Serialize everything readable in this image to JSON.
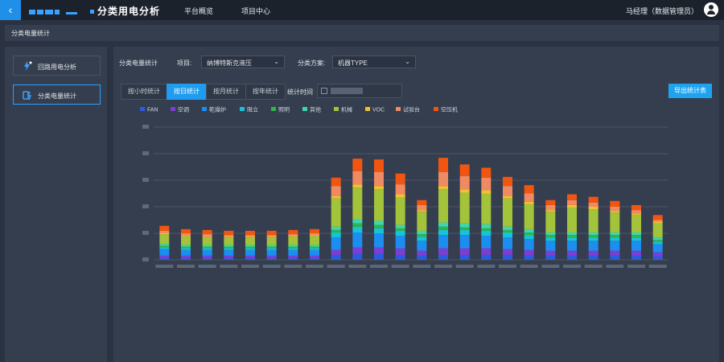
{
  "header": {
    "app_title": "分类用电分析",
    "nav": [
      "平台概览",
      "项目中心"
    ],
    "user": "马经理（数据管理员）"
  },
  "breadcrumb": "分类电量统计",
  "sidebar": {
    "items": [
      {
        "label": "回路用电分析",
        "active": false
      },
      {
        "label": "分类电量统计",
        "active": true
      }
    ]
  },
  "filters": {
    "section_label": "分类电量统计",
    "project_label": "项目:",
    "project_value": "纳博特斯克液压",
    "scheme_label": "分类方案:",
    "scheme_value": "机器TYPE",
    "time_label": "统计时间"
  },
  "tabs": [
    {
      "label": "按小时统计",
      "active": false
    },
    {
      "label": "按日统计",
      "active": true
    },
    {
      "label": "按月统计",
      "active": false
    },
    {
      "label": "按年统计",
      "active": false
    }
  ],
  "export_label": "导出统计表",
  "colors": {
    "accent": "#1f9cf0",
    "background": "#2b3342",
    "panel": "#353e4e"
  },
  "chart_data": {
    "type": "bar",
    "stacked": true,
    "series": [
      {
        "name": "FAN",
        "color": "#2a5ce0",
        "values": [
          2,
          2,
          2,
          2,
          2,
          2,
          2,
          2,
          6,
          7,
          7,
          6,
          5,
          6,
          6,
          6,
          6,
          5,
          5,
          5,
          5,
          5,
          5,
          4
        ]
      },
      {
        "name": "空调",
        "color": "#7b3fd4",
        "values": [
          3,
          3,
          3,
          3,
          3,
          3,
          3,
          3,
          6,
          8,
          8,
          8,
          6,
          8,
          8,
          8,
          7,
          7,
          6,
          6,
          6,
          6,
          6,
          5
        ]
      },
      {
        "name": "乾燥炉",
        "color": "#1b8ef0",
        "values": [
          8,
          7,
          7,
          7,
          7,
          7,
          7,
          7,
          15,
          18,
          17,
          15,
          12,
          16,
          16,
          15,
          14,
          13,
          12,
          12,
          12,
          12,
          12,
          10
        ]
      },
      {
        "name": "阻立",
        "color": "#17c3d6",
        "values": [
          2,
          2,
          2,
          2,
          2,
          2,
          2,
          2,
          6,
          7,
          6,
          6,
          5,
          6,
          6,
          6,
          6,
          5,
          4,
          4,
          4,
          4,
          4,
          3
        ]
      },
      {
        "name": "照明",
        "color": "#2fb54b",
        "values": [
          2,
          2,
          2,
          2,
          2,
          2,
          2,
          2,
          3,
          4,
          4,
          3,
          3,
          4,
          3,
          3,
          3,
          3,
          3,
          3,
          3,
          3,
          3,
          2
        ]
      },
      {
        "name": "其他",
        "color": "#3ed6b0",
        "values": [
          2,
          2,
          2,
          2,
          2,
          2,
          2,
          2,
          4,
          5,
          5,
          4,
          4,
          5,
          5,
          5,
          4,
          4,
          3,
          3,
          3,
          3,
          3,
          3
        ]
      },
      {
        "name": "机械",
        "color": "#a2c33a",
        "values": [
          12,
          10,
          9,
          9,
          9,
          9,
          10,
          11,
          34,
          38,
          38,
          33,
          23,
          40,
          37,
          37,
          34,
          30,
          25,
          30,
          28,
          24,
          21,
          17
        ]
      },
      {
        "name": "VOC",
        "color": "#f2c12e",
        "values": [
          1,
          1,
          1,
          1,
          1,
          1,
          1,
          1,
          3,
          4,
          4,
          4,
          2,
          4,
          4,
          4,
          3,
          3,
          2,
          3,
          3,
          2,
          2,
          2
        ]
      },
      {
        "name": "试验台",
        "color": "#f08a63",
        "values": [
          3,
          3,
          3,
          2,
          2,
          2,
          2,
          2,
          12,
          16,
          17,
          12,
          6,
          17,
          16,
          15,
          12,
          10,
          6,
          6,
          5,
          5,
          4,
          2
        ]
      },
      {
        "name": "空压机",
        "color": "#f2550f",
        "values": [
          6,
          5,
          5,
          5,
          5,
          5,
          5,
          5,
          10,
          15,
          15,
          13,
          6,
          17,
          14,
          12,
          11,
          10,
          6,
          7,
          7,
          7,
          6,
          6
        ]
      }
    ]
  }
}
